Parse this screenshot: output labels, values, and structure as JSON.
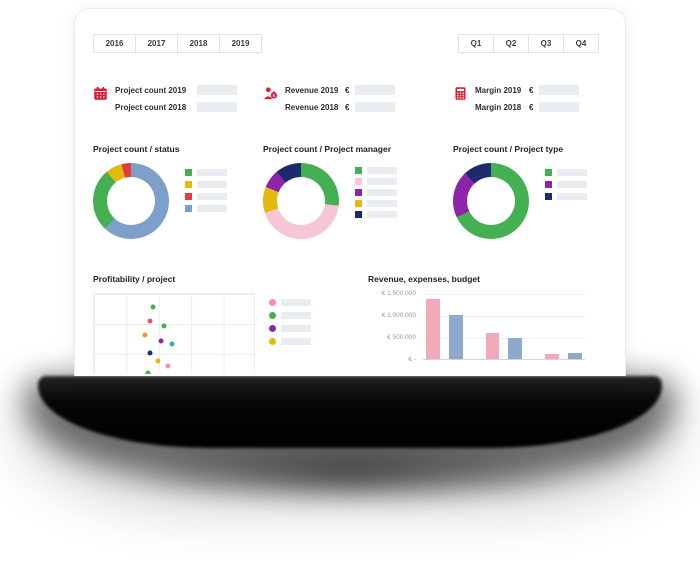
{
  "filters": {
    "years": [
      "2016",
      "2017",
      "2018",
      "2019"
    ],
    "quarters": [
      "Q1",
      "Q2",
      "Q3",
      "Q4"
    ]
  },
  "kpis": {
    "project_count": {
      "row1_label": "Project count 2019",
      "row2_label": "Project count 2018"
    },
    "revenue": {
      "row1_label": "Revenue 2019",
      "row2_label": "Revenue 2018",
      "currency": "€"
    },
    "margin": {
      "row1_label": "Margin 2019",
      "row2_label": "Margin 2018",
      "currency": "€"
    }
  },
  "chart_data": [
    {
      "type": "donut",
      "title": "Project count / status",
      "segments": [
        {
          "color": "#7d9fca",
          "pct": 62
        },
        {
          "color": "#45b051",
          "pct": 27
        },
        {
          "color": "#e2b90c",
          "pct": 7
        },
        {
          "color": "#e23c3c",
          "pct": 4
        }
      ],
      "legend_colors": [
        "#45b051",
        "#e2b90c",
        "#e23c3c",
        "#7d9fca"
      ]
    },
    {
      "type": "donut",
      "title": "Project count / Project manager",
      "segments": [
        {
          "color": "#45b051",
          "pct": 27
        },
        {
          "color": "#f6c6d4",
          "pct": 43
        },
        {
          "color": "#e2b90c",
          "pct": 11
        },
        {
          "color": "#8e24aa",
          "pct": 8
        },
        {
          "color": "#1d2b6e",
          "pct": 11
        }
      ],
      "legend_colors": [
        "#45b051",
        "#f6c6d4",
        "#8e24aa",
        "#e2b90c",
        "#1d2b6e"
      ]
    },
    {
      "type": "donut",
      "title": "Project count / Project type",
      "segments": [
        {
          "color": "#45b051",
          "pct": 68
        },
        {
          "color": "#8e24aa",
          "pct": 20
        },
        {
          "color": "#1d2b6e",
          "pct": 12
        }
      ],
      "legend_colors": [
        "#45b051",
        "#8e24aa",
        "#1d2b6e"
      ]
    },
    {
      "type": "scatter",
      "title": "Profitability / project",
      "points": [
        {
          "x": 37,
          "y": 14,
          "color": "#45b051"
        },
        {
          "x": 35,
          "y": 30,
          "color": "#e05a6e"
        },
        {
          "x": 44,
          "y": 35,
          "color": "#45b051"
        },
        {
          "x": 32,
          "y": 46,
          "color": "#f0932b"
        },
        {
          "x": 42,
          "y": 52,
          "color": "#8e24aa"
        },
        {
          "x": 49,
          "y": 56,
          "color": "#2bb5a0"
        },
        {
          "x": 35,
          "y": 65,
          "color": "#1d2b6e"
        },
        {
          "x": 40,
          "y": 74,
          "color": "#e2b90c"
        },
        {
          "x": 46,
          "y": 80,
          "color": "#f48fb1"
        },
        {
          "x": 34,
          "y": 88,
          "color": "#45b051"
        }
      ],
      "legend_colors": [
        "#f48fb1",
        "#45b051",
        "#8e24aa",
        "#e2b90c"
      ]
    },
    {
      "type": "bar",
      "title": "Revenue, expenses, budget",
      "y_ticks": [
        "€ 1.500.000",
        "€ 1.000.000",
        "€ 500.000",
        "€ -"
      ],
      "ymax": 1500000,
      "bars": [
        {
          "value": 1400000,
          "pct": 93,
          "color": "#f2a9b8"
        },
        {
          "value": 1000000,
          "pct": 67,
          "color": "#8fa9cc"
        },
        {
          "value": 600000,
          "pct": 40,
          "color": "#f2a9b8"
        },
        {
          "value": 500000,
          "pct": 33,
          "color": "#8fa9cc"
        },
        {
          "value": 120000,
          "pct": 8,
          "color": "#f2a9b8"
        },
        {
          "value": 130000,
          "pct": 9,
          "color": "#8fa9cc"
        }
      ]
    }
  ],
  "colors": {
    "accent": "#e11931",
    "placeholder": "#e9edf2"
  }
}
